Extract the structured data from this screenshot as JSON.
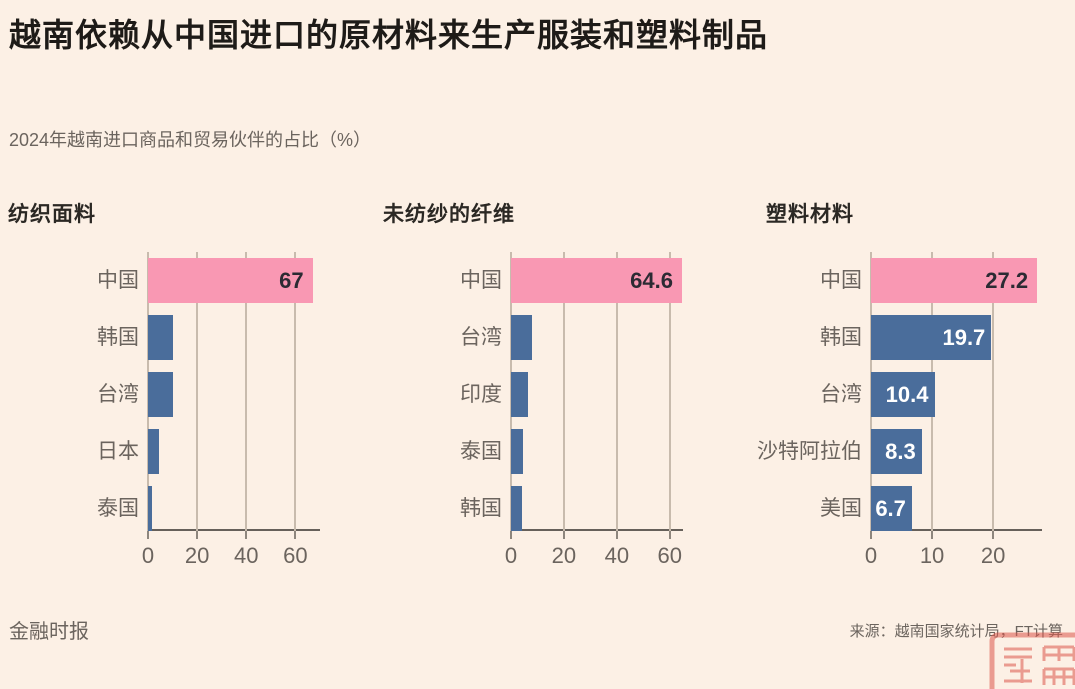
{
  "page": {
    "title": "越南依赖从中国进口的原材料来生产服装和塑料制品",
    "subtitle": "2024年越南进口商品和贸易伙伴的占比（%）",
    "footer_left": "金融时报",
    "footer_right": "来源：越南国家统计局，FT计算"
  },
  "colors": {
    "background": "#FCF0E5",
    "highlight_pink": "#F998B3",
    "bar_blue": "#4A6D9B",
    "gridline": "#C8BBAD",
    "axis": "#66605A",
    "text_dark": "#2C2A33",
    "text_muted": "#6B645E",
    "watermark_red": "#DC574C"
  },
  "chart_data": [
    {
      "type": "bar",
      "orientation": "horizontal",
      "title": "纺织面料",
      "categories": [
        "中国",
        "韩国",
        "台湾",
        "日本",
        "泰国"
      ],
      "values": [
        67,
        10,
        10,
        4.6,
        1.5
      ],
      "value_labels": [
        "67",
        "",
        "",
        "",
        ""
      ],
      "xticks": [
        0,
        20,
        40,
        60
      ],
      "xmax": 70,
      "highlight_index": 0,
      "grid": true,
      "legend": "none"
    },
    {
      "type": "bar",
      "orientation": "horizontal",
      "title": "未纺纱的纤维",
      "categories": [
        "中国",
        "台湾",
        "印度",
        "泰国",
        "韩国"
      ],
      "values": [
        64.6,
        7.8,
        6.4,
        4.7,
        4.3
      ],
      "value_labels": [
        "64.6",
        "",
        "",
        "",
        ""
      ],
      "xticks": [
        0,
        20,
        40,
        60
      ],
      "xmax": 65,
      "highlight_index": 0,
      "grid": true,
      "legend": "none"
    },
    {
      "type": "bar",
      "orientation": "horizontal",
      "title": "塑料材料",
      "categories": [
        "中国",
        "韩国",
        "台湾",
        "沙特阿拉伯",
        "美国"
      ],
      "values": [
        27.2,
        19.7,
        10.4,
        8.3,
        6.7
      ],
      "value_labels": [
        "27.2",
        "19.7",
        "10.4",
        "8.3",
        "6.7"
      ],
      "xticks": [
        0,
        10,
        20
      ],
      "xmax": 28,
      "highlight_index": 0,
      "grid": true,
      "legend": "none"
    }
  ]
}
